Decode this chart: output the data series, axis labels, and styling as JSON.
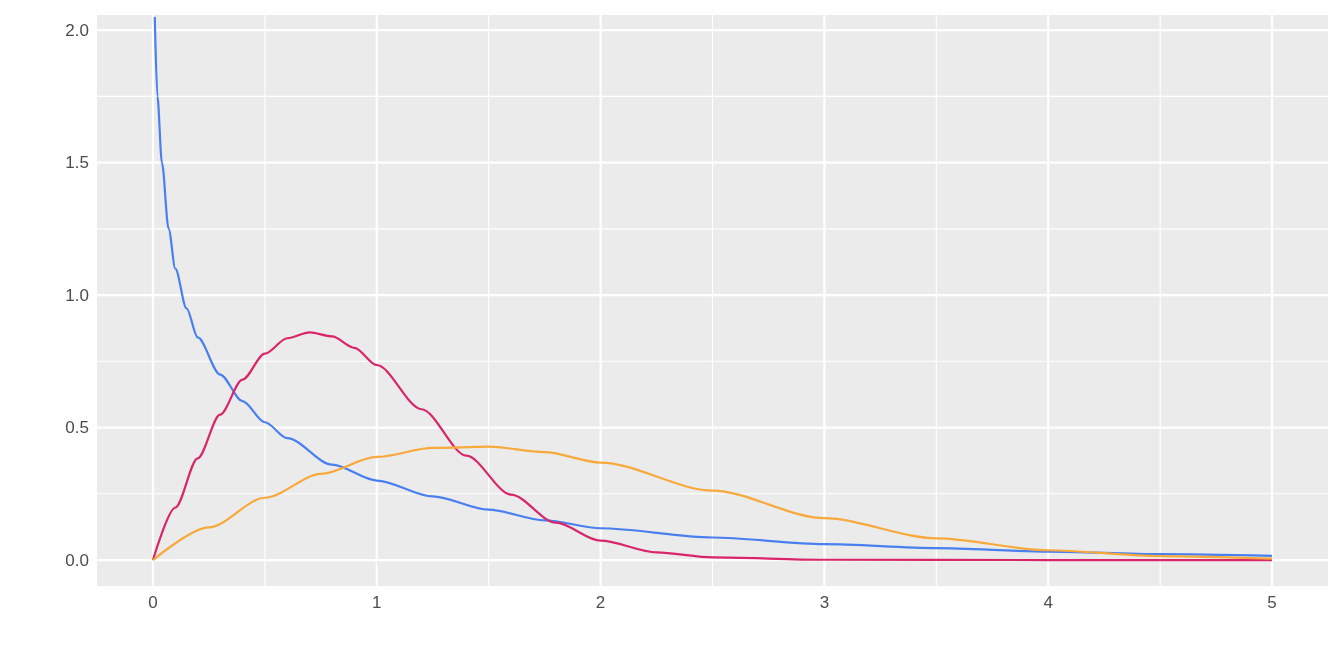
{
  "chart_data": {
    "type": "line",
    "xlim": [
      -0.25,
      5.25
    ],
    "xticks": [
      0,
      1,
      2,
      3,
      4,
      5
    ],
    "ylim": [
      -0.098,
      2.057
    ],
    "yticks": [
      {
        "value": 0,
        "label": "0.0"
      },
      {
        "value": 0.5,
        "label": "0.5"
      },
      {
        "value": 1,
        "label": "1.0"
      },
      {
        "value": 1.5,
        "label": "1.5"
      },
      {
        "value": 2,
        "label": "2.0"
      }
    ],
    "grid": true,
    "series": [
      {
        "color": "#4a7ff0",
        "x": [
          0.008,
          0.02,
          0.04,
          0.07,
          0.1,
          0.15,
          0.2,
          0.3,
          0.4,
          0.5,
          0.6,
          0.8,
          1,
          1.25,
          1.5,
          1.75,
          2,
          2.5,
          3,
          3.5,
          4,
          4.5,
          5
        ],
        "values": [
          2.05,
          1.75,
          1.5,
          1.25,
          1.1,
          0.95,
          0.84,
          0.7,
          0.6,
          0.52,
          0.46,
          0.36,
          0.3,
          0.24,
          0.19,
          0.15,
          0.12,
          0.085,
          0.06,
          0.045,
          0.032,
          0.022,
          0.016
        ]
      },
      {
        "color": "#d9266b",
        "x": [
          0,
          0.1,
          0.2,
          0.3,
          0.4,
          0.5,
          0.6,
          0.7,
          0.8,
          0.9,
          1,
          1.2,
          1.4,
          1.6,
          1.8,
          2,
          2.25,
          2.5,
          3,
          4,
          5
        ],
        "values": [
          0,
          0.198,
          0.384,
          0.549,
          0.681,
          0.779,
          0.837,
          0.859,
          0.844,
          0.801,
          0.736,
          0.569,
          0.394,
          0.247,
          0.141,
          0.073,
          0.029,
          0.01,
          0.001,
          0,
          0
        ]
      },
      {
        "color": "#f8a93c",
        "x": [
          0,
          0.25,
          0.5,
          0.75,
          1,
          1.25,
          1.5,
          1.75,
          2,
          2.5,
          3,
          3.5,
          4,
          4.5,
          5
        ],
        "values": [
          0,
          0.123,
          0.235,
          0.325,
          0.389,
          0.423,
          0.428,
          0.407,
          0.368,
          0.262,
          0.158,
          0.082,
          0.037,
          0.015,
          0.005
        ]
      }
    ]
  }
}
